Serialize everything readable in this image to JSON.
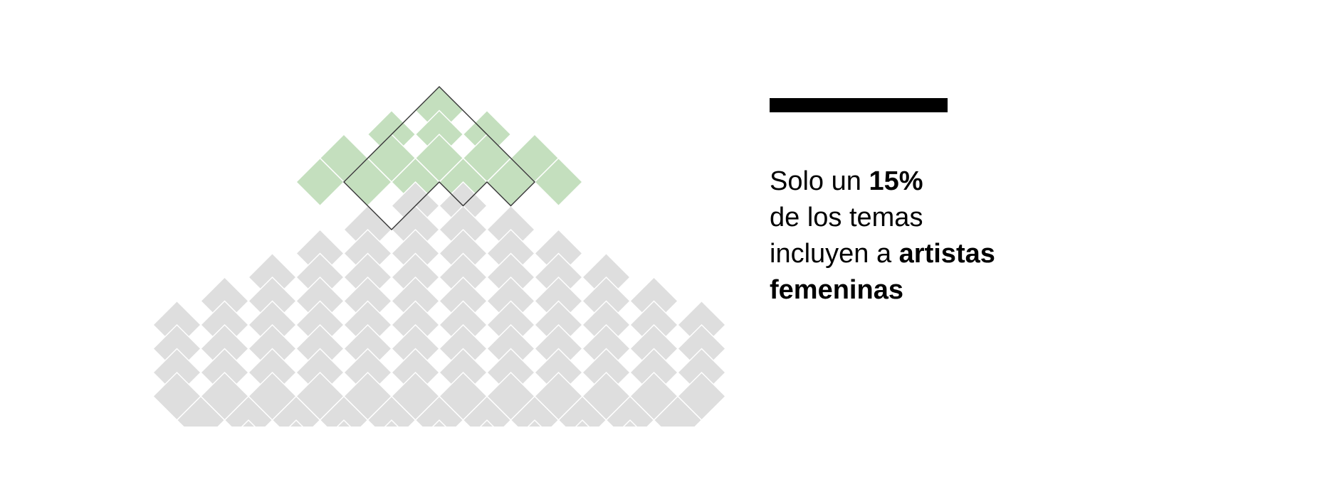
{
  "chart_data": {
    "type": "waffle-pyramid",
    "highlight_percent": 15,
    "colors": {
      "highlight": "#c4dfbe",
      "base": "#dedede",
      "cell_border": "#ffffff",
      "outline": "#333333"
    },
    "highlighted_rows": [
      1,
      3,
      5,
      6
    ],
    "base_rows": [
      2,
      4,
      6,
      8,
      10,
      12,
      12,
      12,
      12,
      11,
      9,
      8,
      6
    ],
    "bottom_row_gaps": [
      4,
      8
    ]
  },
  "caption": {
    "line1_pre": "Solo un ",
    "line1_bold": "15%",
    "line2": "de los temas",
    "line3_pre": "incluyen a ",
    "line3_bold": "artistas",
    "line4_bold": "femeninas"
  }
}
